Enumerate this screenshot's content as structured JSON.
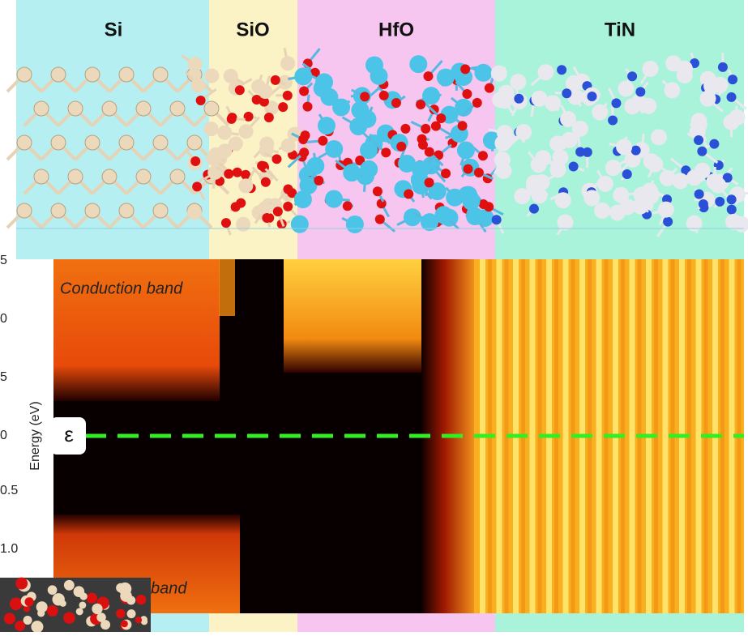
{
  "header": {
    "regions": [
      "Si",
      "SiO",
      "HfO",
      "TiN"
    ]
  },
  "figure": {
    "conduction_label": "Conduction band",
    "valence_label": "band",
    "fermi_label": "ε",
    "axis": {
      "label": "Energy (eV)",
      "ticks": [
        "5",
        "0",
        "5",
        "0",
        "0.5",
        "1.0"
      ]
    }
  }
}
